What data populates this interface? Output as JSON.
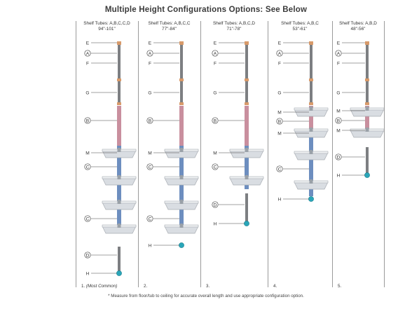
{
  "title": "Multiple Height Configurations Options: See Below",
  "footnote": "* Measure from floor/tub to ceiling for accurate overall length and use appropriate configuration option.",
  "colors": {
    "pole": "#7d7f82",
    "tube_b": "#c98f9e",
    "tube_c": "#6d8ebf",
    "base": "#2aa6b9",
    "coupler": "#d89a6a",
    "shelf": "#d9dde2"
  },
  "configs": [
    {
      "tubes_line": "Shelf Tubes: A,B,C,C,D",
      "range": "94\"-101\"",
      "number": "1.",
      "note": "(Most Common)",
      "parts": [
        {
          "letter": "E",
          "circled": false
        },
        {
          "letter": "A",
          "circled": true
        },
        {
          "letter": "F",
          "circled": false
        },
        {
          "letter": "G",
          "circled": false
        },
        {
          "letter": "B",
          "circled": true
        },
        {
          "letter": "M",
          "circled": false
        },
        {
          "letter": "C",
          "circled": true
        },
        {
          "letter": "C",
          "circled": true
        },
        {
          "letter": "D",
          "circled": true
        },
        {
          "letter": "H",
          "circled": false
        }
      ]
    },
    {
      "tubes_line": "Shelf Tubes: A,B,C,C",
      "range": "77\"-84\"",
      "number": "2.",
      "note": "",
      "parts": [
        {
          "letter": "E",
          "circled": false
        },
        {
          "letter": "A",
          "circled": true
        },
        {
          "letter": "F",
          "circled": false
        },
        {
          "letter": "G",
          "circled": false
        },
        {
          "letter": "B",
          "circled": true
        },
        {
          "letter": "M",
          "circled": false
        },
        {
          "letter": "C",
          "circled": true
        },
        {
          "letter": "C",
          "circled": true
        },
        {
          "letter": "H",
          "circled": false
        }
      ]
    },
    {
      "tubes_line": "Shelf Tubes: A,B,C,D",
      "range": "71\"-78\"",
      "number": "3.",
      "note": "",
      "parts": [
        {
          "letter": "E",
          "circled": false
        },
        {
          "letter": "A",
          "circled": true
        },
        {
          "letter": "F",
          "circled": false
        },
        {
          "letter": "G",
          "circled": false
        },
        {
          "letter": "B",
          "circled": true
        },
        {
          "letter": "M",
          "circled": false
        },
        {
          "letter": "C",
          "circled": true
        },
        {
          "letter": "D",
          "circled": true
        },
        {
          "letter": "H",
          "circled": false
        }
      ]
    },
    {
      "tubes_line": "Shelf Tubes: A,B,C",
      "range": "53\"-61\"",
      "number": "4.",
      "note": "",
      "parts": [
        {
          "letter": "E",
          "circled": false
        },
        {
          "letter": "A",
          "circled": true
        },
        {
          "letter": "F",
          "circled": false
        },
        {
          "letter": "G",
          "circled": false
        },
        {
          "letter": "M",
          "circled": false
        },
        {
          "letter": "B",
          "circled": true
        },
        {
          "letter": "M",
          "circled": false
        },
        {
          "letter": "C",
          "circled": true
        },
        {
          "letter": "H",
          "circled": false
        }
      ]
    },
    {
      "tubes_line": "Shelf Tubes: A,B,D",
      "range": "48\"-56\"",
      "number": "5.",
      "note": "",
      "parts": [
        {
          "letter": "E",
          "circled": false
        },
        {
          "letter": "A",
          "circled": true
        },
        {
          "letter": "F",
          "circled": false
        },
        {
          "letter": "G",
          "circled": false
        },
        {
          "letter": "M",
          "circled": false
        },
        {
          "letter": "B",
          "circled": true
        },
        {
          "letter": "M",
          "circled": false
        },
        {
          "letter": "D",
          "circled": true
        },
        {
          "letter": "H",
          "circled": false
        }
      ]
    }
  ]
}
